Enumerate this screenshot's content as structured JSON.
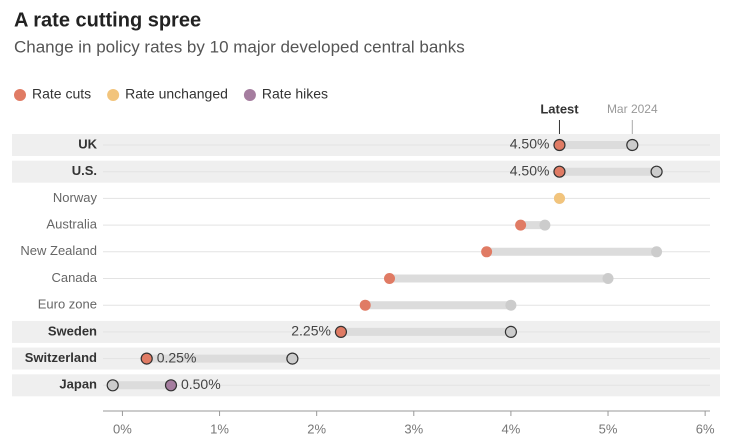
{
  "chart_data": {
    "type": "dumbbell",
    "title": "A rate cutting spree",
    "subtitle": "Change in policy rates by 10 major developed central banks",
    "legend": [
      {
        "name": "Rate cuts",
        "color": "#e07b64"
      },
      {
        "name": "Rate unchanged",
        "color": "#f2c47c"
      },
      {
        "name": "Rate hikes",
        "color": "#a57d9f"
      }
    ],
    "categories": [
      "UK",
      "U.S.",
      "Norway",
      "Australia",
      "New Zealand",
      "Canada",
      "Euro zone",
      "Sweden",
      "Switzerland",
      "Japan"
    ],
    "highlight": [
      true,
      true,
      false,
      false,
      false,
      false,
      false,
      true,
      true,
      true
    ],
    "series": [
      {
        "name": "Latest",
        "values": [
          4.5,
          4.5,
          4.5,
          4.1,
          3.75,
          2.75,
          2.5,
          2.25,
          0.25,
          0.5
        ],
        "value_labels": [
          "4.50%",
          "4.50%",
          null,
          null,
          null,
          null,
          null,
          "2.25%",
          "0.25%",
          "0.50%"
        ]
      },
      {
        "name": "Mar 2024",
        "color": "#cccccc",
        "values": [
          5.25,
          5.5,
          4.5,
          4.35,
          5.5,
          5.0,
          4.0,
          4.0,
          1.75,
          -0.1
        ]
      }
    ],
    "xlim": [
      -0.2,
      6.05
    ],
    "xticks": [
      {
        "value": 0,
        "label": "0%"
      },
      {
        "value": 1,
        "label": "1%"
      },
      {
        "value": 2,
        "label": "2%"
      },
      {
        "value": 3,
        "label": "3%"
      },
      {
        "value": 4,
        "label": "4%"
      },
      {
        "value": 5,
        "label": "5%"
      },
      {
        "value": 6,
        "label": "6%"
      }
    ]
  }
}
